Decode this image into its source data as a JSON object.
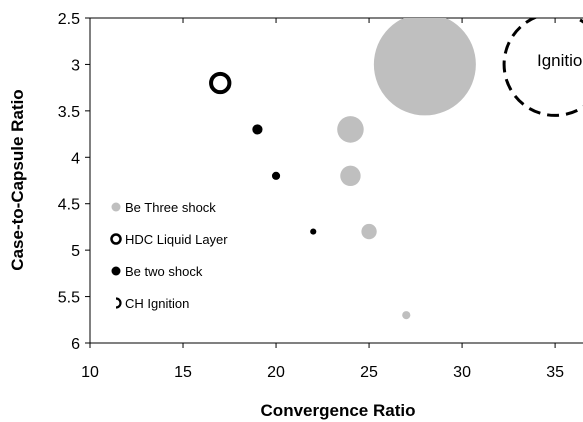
{
  "chart_data": {
    "type": "scatter",
    "xlabel": "Convergence Ratio",
    "ylabel": "Case-to-Capsule Ratio",
    "xlim": [
      10,
      36.5
    ],
    "ylim": [
      2.5,
      6
    ],
    "y_reversed": true,
    "x_ticks": [
      "10",
      "15",
      "20",
      "25",
      "30",
      "35"
    ],
    "y_ticks": [
      "2.5",
      "3",
      "3.5",
      "4",
      "4.5",
      "5",
      "5.5",
      "6"
    ],
    "grid": false,
    "legend_position": "left",
    "series": [
      {
        "name": "Be Three shock",
        "style": "filled",
        "color": "#bfbfbf",
        "points": [
          {
            "x": 28,
            "y": 3.0,
            "size": 1.0
          },
          {
            "x": 24,
            "y": 3.7,
            "size": 0.26
          },
          {
            "x": 24,
            "y": 4.2,
            "size": 0.2
          },
          {
            "x": 25,
            "y": 4.8,
            "size": 0.15
          },
          {
            "x": 27,
            "y": 5.7,
            "size": 0.08
          }
        ]
      },
      {
        "name": "HDC Liquid Layer",
        "style": "hollow",
        "color": "#000000",
        "points": [
          {
            "x": 17,
            "y": 3.2,
            "size": 0.18
          }
        ]
      },
      {
        "name": "Be two shock",
        "style": "filled",
        "color": "#000000",
        "points": [
          {
            "x": 19,
            "y": 3.7,
            "size": 0.1
          },
          {
            "x": 20,
            "y": 4.2,
            "size": 0.08
          },
          {
            "x": 22,
            "y": 4.8,
            "size": 0.06
          }
        ]
      },
      {
        "name": "CH Ignition",
        "style": "dashed",
        "color": "#000000",
        "points": [
          {
            "x": 35,
            "y": 3.0,
            "size": 1.0
          }
        ]
      }
    ],
    "annotations": [
      {
        "text": "Ignition",
        "x": 35.5,
        "y": 2.95
      }
    ]
  }
}
